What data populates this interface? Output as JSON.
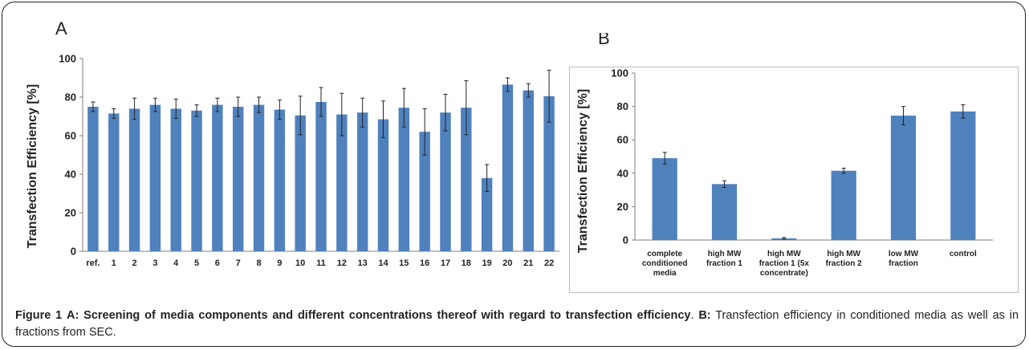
{
  "colors": {
    "bar": "#4f81bd",
    "axis": "#7f7f7f",
    "error": "#222222",
    "text": "#222222"
  },
  "chart_data": [
    {
      "type": "bar",
      "panel": "A",
      "ylabel": "Transfection Efficiency [%]",
      "ylim": [
        0,
        100
      ],
      "yticks": [
        0,
        20,
        40,
        60,
        80,
        100
      ],
      "grid": false,
      "categories": [
        "ref.",
        "1",
        "2",
        "3",
        "4",
        "5",
        "6",
        "7",
        "8",
        "9",
        "10",
        "11",
        "12",
        "13",
        "14",
        "15",
        "16",
        "17",
        "18",
        "19",
        "20",
        "21",
        "22"
      ],
      "values": [
        75,
        71.5,
        74,
        76,
        74,
        73,
        76,
        75,
        76,
        73.5,
        70.5,
        77.5,
        71,
        72,
        68.5,
        74.5,
        62,
        72,
        74.5,
        38,
        86.5,
        83.5,
        80.5
      ],
      "errors": [
        2.5,
        2.5,
        5.5,
        3.5,
        5,
        3,
        3.5,
        5,
        4,
        5,
        10,
        7.5,
        11,
        7.5,
        9.5,
        10,
        12,
        9.5,
        14,
        7,
        3.5,
        3.5,
        13.5
      ]
    },
    {
      "type": "bar",
      "panel": "B",
      "ylabel": "Transfection Efficiency [%]",
      "ylim": [
        0,
        100
      ],
      "yticks": [
        0,
        20,
        40,
        60,
        80,
        100
      ],
      "grid": false,
      "categories": [
        [
          "complete",
          "conditioned",
          "media"
        ],
        [
          "high MW",
          "fraction 1"
        ],
        [
          "high MW",
          "fraction 1 (5x",
          "concentrate)"
        ],
        [
          "high MW",
          "fraction 2"
        ],
        [
          "low MW",
          "fraction"
        ],
        [
          "control"
        ]
      ],
      "values": [
        49,
        33.5,
        1,
        41.5,
        74.5,
        77
      ],
      "errors": [
        3.5,
        2,
        0.5,
        1.5,
        5.5,
        4
      ]
    }
  ],
  "caption": {
    "label_fig": "Figure 1",
    "label_a": "A:",
    "text_a": "Screening of media components and different concentrations thereof with regard to transfection efficiency",
    "label_b": "B:",
    "text_b": "Transfection efficiency in conditioned media as well as in fractions from SEC."
  }
}
